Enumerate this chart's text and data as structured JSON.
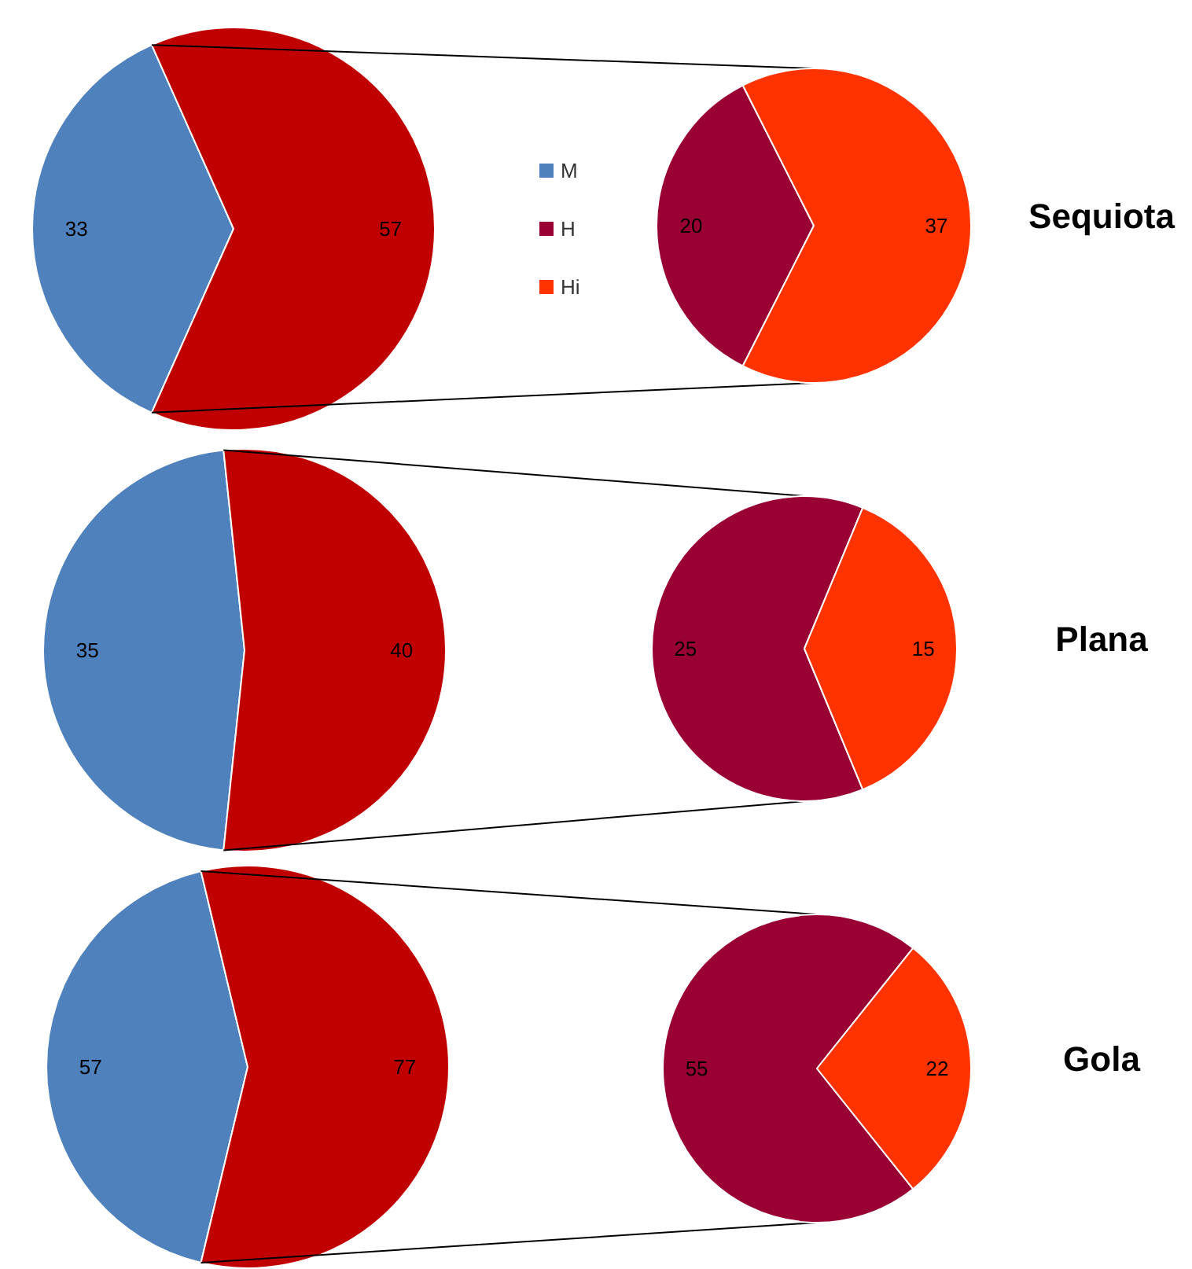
{
  "chart_data": [
    {
      "type": "pie",
      "categories": [
        "M",
        null
      ],
      "values": [
        33,
        57
      ],
      "colors": [
        "#4f81bd",
        "#c00000"
      ],
      "data_labels": true,
      "legend": "right"
    },
    {
      "type": "pie",
      "title": "Sequiota",
      "categories": [
        "H",
        "Hi"
      ],
      "values": [
        20,
        37
      ],
      "colors": [
        "#990033",
        "#ff3300"
      ],
      "data_labels": true,
      "legend": "left"
    },
    {
      "type": "pie",
      "values": [
        35,
        40
      ],
      "colors": [
        "#4f81bd",
        "#c00000"
      ],
      "data_labels": true
    },
    {
      "type": "pie",
      "title": "Plana",
      "values": [
        25,
        15
      ],
      "colors": [
        "#990033",
        "#ff3300"
      ],
      "data_labels": true
    },
    {
      "type": "pie",
      "values": [
        57,
        77
      ],
      "colors": [
        "#4f81bd",
        "#c00000"
      ],
      "data_labels": true
    },
    {
      "type": "pie",
      "title": "Gola",
      "values": [
        55,
        22
      ],
      "colors": [
        "#990033",
        "#ff3300"
      ],
      "data_labels": true
    }
  ]
}
